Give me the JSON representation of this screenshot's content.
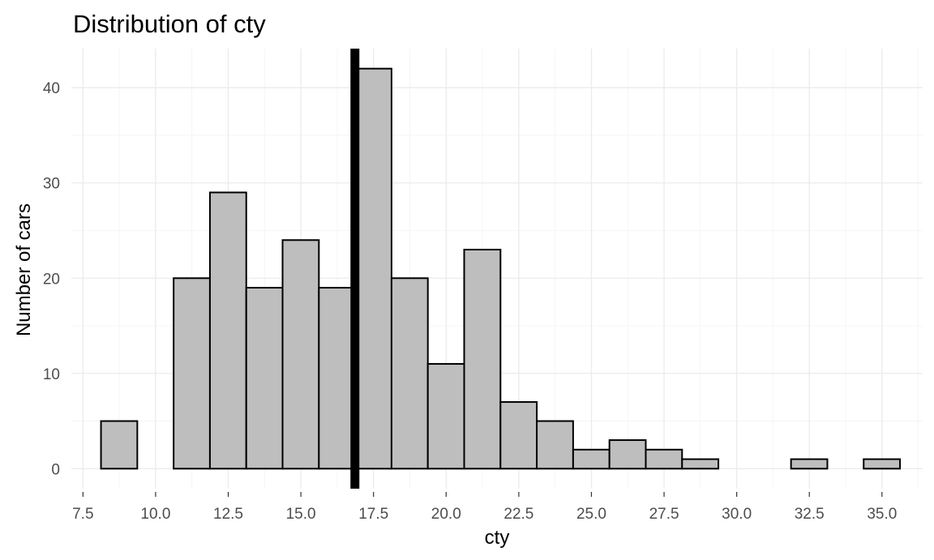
{
  "chart_data": {
    "type": "bar",
    "title": "Distribution of cty",
    "xlabel": "cty",
    "ylabel": "Number of cars",
    "xlim": [
      7.1,
      36.4
    ],
    "ylim": [
      -2.1,
      44.1
    ],
    "x_ticks": [
      "7.5",
      "10.0",
      "12.5",
      "15.0",
      "17.5",
      "20.0",
      "22.5",
      "25.0",
      "27.5",
      "30.0",
      "32.5",
      "35.0"
    ],
    "x_tick_values": [
      7.5,
      10.0,
      12.5,
      15.0,
      17.5,
      20.0,
      22.5,
      25.0,
      27.5,
      30.0,
      32.5,
      35.0
    ],
    "y_ticks": [
      "0",
      "10",
      "20",
      "30",
      "40"
    ],
    "y_tick_values": [
      0,
      10,
      20,
      30,
      40
    ],
    "bin_width": 1.25,
    "bin_starts": [
      8.12,
      9.37,
      10.62,
      11.87,
      13.12,
      14.37,
      15.62,
      16.87,
      18.12,
      19.37,
      20.62,
      21.87,
      23.12,
      24.37,
      25.62,
      26.87,
      28.12,
      29.37,
      30.62,
      31.87,
      33.12,
      34.37
    ],
    "values": [
      5,
      0,
      20,
      29,
      19,
      24,
      19,
      42,
      20,
      11,
      23,
      7,
      5,
      2,
      3,
      2,
      1,
      0,
      0,
      1,
      0,
      1
    ],
    "reference_line_x": 16.86,
    "grid": true,
    "colors": {
      "bar_fill": "#bebebe",
      "bar_outline": "#000000",
      "reference_line": "#000000",
      "grid": "#ebebeb"
    }
  }
}
